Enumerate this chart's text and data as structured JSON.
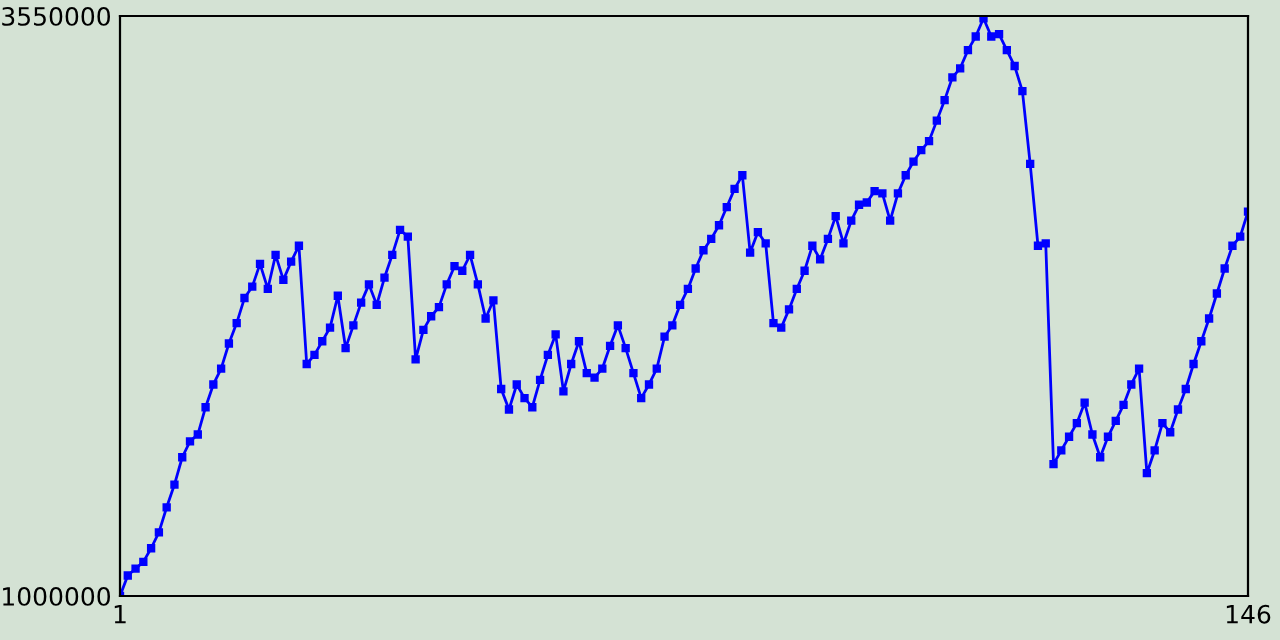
{
  "chart_data": {
    "type": "line",
    "x": [
      1,
      2,
      3,
      4,
      5,
      6,
      7,
      8,
      9,
      10,
      11,
      12,
      13,
      14,
      15,
      16,
      17,
      18,
      19,
      20,
      21,
      22,
      23,
      24,
      25,
      26,
      27,
      28,
      29,
      30,
      31,
      32,
      33,
      34,
      35,
      36,
      37,
      38,
      39,
      40,
      41,
      42,
      43,
      44,
      45,
      46,
      47,
      48,
      49,
      50,
      51,
      52,
      53,
      54,
      55,
      56,
      57,
      58,
      59,
      60,
      61,
      62,
      63,
      64,
      65,
      66,
      67,
      68,
      69,
      70,
      71,
      72,
      73,
      74,
      75,
      76,
      77,
      78,
      79,
      80,
      81,
      82,
      83,
      84,
      85,
      86,
      87,
      88,
      89,
      90,
      91,
      92,
      93,
      94,
      95,
      96,
      97,
      98,
      99,
      100,
      101,
      102,
      103,
      104,
      105,
      106,
      107,
      108,
      109,
      110,
      111,
      112,
      113,
      114,
      115,
      116,
      117,
      118,
      119,
      120,
      121,
      122,
      123,
      124,
      125,
      126,
      127,
      128,
      129,
      130,
      131,
      132,
      133,
      134,
      135,
      136,
      137,
      138,
      139,
      140,
      141,
      142,
      143,
      144,
      145,
      146
    ],
    "series": [
      {
        "color": "#0000ff",
        "values": [
          1000000,
          1090000,
          1120000,
          1150000,
          1210000,
          1280000,
          1390000,
          1490000,
          1610000,
          1680000,
          1710000,
          1830000,
          1930000,
          2000000,
          2110000,
          2200000,
          2310000,
          2360000,
          2460000,
          2350000,
          2500000,
          2390000,
          2470000,
          2540000,
          2020000,
          2060000,
          2120000,
          2180000,
          2320000,
          2090000,
          2190000,
          2290000,
          2370000,
          2280000,
          2400000,
          2500000,
          2610000,
          2580000,
          2040000,
          2170000,
          2230000,
          2270000,
          2370000,
          2450000,
          2430000,
          2500000,
          2370000,
          2220000,
          2300000,
          1910000,
          1820000,
          1930000,
          1870000,
          1830000,
          1950000,
          2060000,
          2150000,
          1900000,
          2020000,
          2120000,
          1980000,
          1960000,
          2000000,
          2100000,
          2190000,
          2090000,
          1980000,
          1870000,
          1930000,
          2000000,
          2140000,
          2190000,
          2280000,
          2350000,
          2440000,
          2520000,
          2570000,
          2630000,
          2710000,
          2790000,
          2850000,
          2510000,
          2600000,
          2550000,
          2200000,
          2180000,
          2260000,
          2350000,
          2430000,
          2540000,
          2480000,
          2570000,
          2670000,
          2550000,
          2650000,
          2720000,
          2730000,
          2780000,
          2770000,
          2650000,
          2770000,
          2850000,
          2910000,
          2960000,
          3000000,
          3090000,
          3180000,
          3280000,
          3320000,
          3400000,
          3460000,
          3540000,
          3460000,
          3470000,
          3400000,
          3330000,
          3220000,
          2900000,
          2540000,
          2550000,
          1580000,
          1640000,
          1700000,
          1760000,
          1850000,
          1710000,
          1610000,
          1700000,
          1770000,
          1840000,
          1930000,
          2000000,
          1540000,
          1640000,
          1760000,
          1720000,
          1820000,
          1910000,
          2020000,
          2120000,
          2220000,
          2330000,
          2440000,
          2540000,
          2580000,
          2690000
        ]
      }
    ],
    "xlim": [
      1,
      146
    ],
    "xticks": [
      1,
      146
    ],
    "ylim": [
      1000000,
      3550000
    ],
    "yticks": [
      1000000,
      3550000
    ],
    "marker": "square",
    "grid": false,
    "legend": false
  }
}
